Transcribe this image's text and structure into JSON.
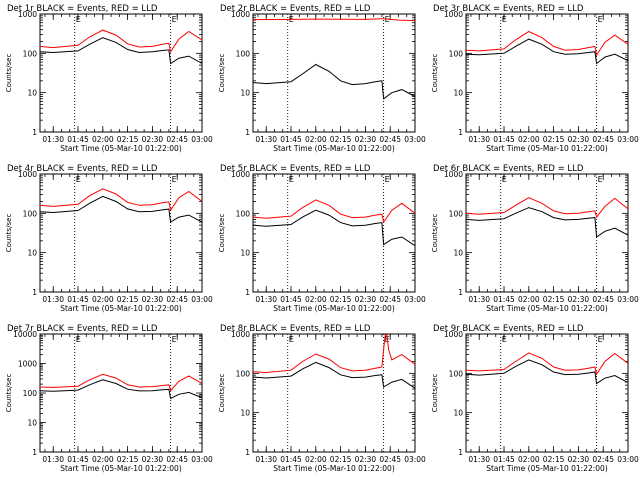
{
  "chart_data": [
    {
      "type": "line",
      "title": "Det 1r BLACK = Events, RED = LLD",
      "xlabel": "Start Time (05-Mar-10 01:22:00)",
      "ylabel": "Counts/sec",
      "x_ticks": [
        "01:30",
        "01:45",
        "02:00",
        "02:15",
        "02:30",
        "02:45",
        "03:00"
      ],
      "y_ticks": [
        "1",
        "10",
        "100",
        "1000"
      ],
      "xlim": [
        "01:22",
        "03:00"
      ],
      "ylim": [
        1,
        1000
      ],
      "y_scale": "log",
      "markers": [
        "01:43",
        "02:41"
      ],
      "marker_labels": [
        "E",
        "E"
      ],
      "series": [
        {
          "color": "#ff0000",
          "x": [
            "01:22",
            "01:30",
            "01:45",
            "01:52",
            "02:00",
            "02:08",
            "02:15",
            "02:22",
            "02:30",
            "02:36",
            "02:40",
            "02:41",
            "02:46",
            "02:52",
            "03:00"
          ],
          "y": [
            150,
            140,
            160,
            260,
            390,
            290,
            175,
            145,
            150,
            170,
            180,
            110,
            230,
            360,
            220
          ]
        },
        {
          "color": "#000000",
          "x": [
            "01:22",
            "01:30",
            "01:45",
            "01:52",
            "02:00",
            "02:08",
            "02:15",
            "02:22",
            "02:30",
            "02:36",
            "02:40",
            "02:41",
            "02:46",
            "02:52",
            "03:00"
          ],
          "y": [
            110,
            105,
            115,
            170,
            250,
            190,
            125,
            105,
            110,
            118,
            122,
            55,
            75,
            85,
            55
          ]
        }
      ]
    },
    {
      "type": "line",
      "title": "Det 2r BLACK = Events, RED = LLD",
      "xlabel": "Start Time (05-Mar-10 01:22:00)",
      "ylabel": "Counts/sec",
      "x_ticks": [
        "01:30",
        "01:45",
        "02:00",
        "02:15",
        "02:30",
        "02:45",
        "03:00"
      ],
      "y_ticks": [
        "1",
        "10",
        "100",
        "1000"
      ],
      "xlim": [
        "01:22",
        "03:00"
      ],
      "ylim": [
        1,
        1000
      ],
      "y_scale": "log",
      "markers": [
        "01:43",
        "02:41"
      ],
      "marker_labels": [
        "E",
        "E"
      ],
      "series": [
        {
          "color": "#ff0000",
          "x": [
            "01:22",
            "01:45",
            "02:00",
            "02:15",
            "02:30",
            "02:41",
            "02:50",
            "03:00"
          ],
          "y": [
            720,
            730,
            740,
            735,
            730,
            760,
            700,
            680
          ]
        },
        {
          "color": "#000000",
          "x": [
            "01:22",
            "01:30",
            "01:45",
            "01:52",
            "02:00",
            "02:08",
            "02:15",
            "02:22",
            "02:30",
            "02:36",
            "02:40",
            "02:41",
            "02:46",
            "02:52",
            "03:00"
          ],
          "y": [
            18,
            17,
            19,
            30,
            52,
            35,
            20,
            16,
            17,
            19,
            20,
            7,
            10,
            12,
            8
          ]
        }
      ]
    },
    {
      "type": "line",
      "title": "Det 3r BLACK = Events, RED = LLD",
      "xlabel": "Start Time (05-Mar-10 01:22:00)",
      "ylabel": "Counts/sec",
      "x_ticks": [
        "01:30",
        "01:45",
        "02:00",
        "02:15",
        "02:30",
        "02:45",
        "03:00"
      ],
      "y_ticks": [
        "1",
        "10",
        "100",
        "1000"
      ],
      "xlim": [
        "01:22",
        "03:00"
      ],
      "ylim": [
        1,
        1000
      ],
      "y_scale": "log",
      "markers": [
        "01:43",
        "02:41"
      ],
      "marker_labels": [
        "E",
        "E"
      ],
      "series": [
        {
          "color": "#ff0000",
          "x": [
            "01:22",
            "01:30",
            "01:45",
            "01:52",
            "02:00",
            "02:08",
            "02:15",
            "02:22",
            "02:30",
            "02:36",
            "02:40",
            "02:41",
            "02:46",
            "02:52",
            "03:00"
          ],
          "y": [
            120,
            115,
            130,
            220,
            360,
            250,
            150,
            120,
            125,
            140,
            150,
            90,
            190,
            290,
            170
          ]
        },
        {
          "color": "#000000",
          "x": [
            "01:22",
            "01:30",
            "01:45",
            "01:52",
            "02:00",
            "02:08",
            "02:15",
            "02:22",
            "02:30",
            "02:36",
            "02:40",
            "02:41",
            "02:46",
            "02:52",
            "03:00"
          ],
          "y": [
            95,
            92,
            100,
            150,
            230,
            170,
            110,
            95,
            98,
            105,
            110,
            55,
            80,
            95,
            65
          ]
        }
      ]
    },
    {
      "type": "line",
      "title": "Det 4r BLACK = Events, RED = LLD",
      "xlabel": "Start Time (05-Mar-10 01:22:00)",
      "ylabel": "Counts/sec",
      "x_ticks": [
        "01:30",
        "01:45",
        "02:00",
        "02:15",
        "02:30",
        "02:45",
        "03:00"
      ],
      "y_ticks": [
        "1",
        "10",
        "100",
        "1000"
      ],
      "xlim": [
        "01:22",
        "03:00"
      ],
      "ylim": [
        1,
        1000
      ],
      "y_scale": "log",
      "markers": [
        "01:43",
        "02:41"
      ],
      "marker_labels": [
        "E",
        "E"
      ],
      "series": [
        {
          "color": "#ff0000",
          "x": [
            "01:22",
            "01:30",
            "01:45",
            "01:52",
            "02:00",
            "02:08",
            "02:15",
            "02:22",
            "02:30",
            "02:36",
            "02:40",
            "02:41",
            "02:46",
            "02:52",
            "03:00"
          ],
          "y": [
            160,
            150,
            170,
            280,
            420,
            310,
            190,
            160,
            165,
            185,
            195,
            120,
            250,
            360,
            200
          ]
        },
        {
          "color": "#000000",
          "x": [
            "01:22",
            "01:30",
            "01:45",
            "01:52",
            "02:00",
            "02:08",
            "02:15",
            "02:22",
            "02:30",
            "02:36",
            "02:40",
            "02:41",
            "02:46",
            "02:52",
            "03:00"
          ],
          "y": [
            110,
            105,
            118,
            180,
            270,
            200,
            130,
            110,
            112,
            122,
            128,
            60,
            80,
            90,
            60
          ]
        }
      ]
    },
    {
      "type": "line",
      "title": "Det 5r BLACK = Events, RED = LLD",
      "xlabel": "Start Time (05-Mar-10 01:22:00)",
      "ylabel": "Counts/sec",
      "x_ticks": [
        "01:30",
        "01:45",
        "02:00",
        "02:15",
        "02:30",
        "02:45",
        "03:00"
      ],
      "y_ticks": [
        "1",
        "10",
        "100",
        "1000"
      ],
      "xlim": [
        "01:22",
        "03:00"
      ],
      "ylim": [
        1,
        1000
      ],
      "y_scale": "log",
      "markers": [
        "01:43",
        "02:41"
      ],
      "marker_labels": [
        "E",
        "E"
      ],
      "series": [
        {
          "color": "#ff0000",
          "x": [
            "01:22",
            "01:30",
            "01:45",
            "01:52",
            "02:00",
            "02:08",
            "02:15",
            "02:22",
            "02:30",
            "02:36",
            "02:40",
            "02:41",
            "02:46",
            "02:52",
            "03:00"
          ],
          "y": [
            80,
            75,
            85,
            140,
            220,
            160,
            95,
            78,
            80,
            90,
            95,
            60,
            120,
            180,
            100
          ]
        },
        {
          "color": "#000000",
          "x": [
            "01:22",
            "01:30",
            "01:45",
            "01:52",
            "02:00",
            "02:08",
            "02:15",
            "02:22",
            "02:30",
            "02:36",
            "02:40",
            "02:41",
            "02:46",
            "02:52",
            "03:00"
          ],
          "y": [
            50,
            47,
            52,
            80,
            120,
            90,
            58,
            48,
            50,
            55,
            58,
            16,
            22,
            25,
            15
          ]
        }
      ]
    },
    {
      "type": "line",
      "title": "Det 6r BLACK = Events, RED = LLD",
      "xlabel": "Start Time (05-Mar-10 01:22:00)",
      "ylabel": "Counts/sec",
      "x_ticks": [
        "01:30",
        "01:45",
        "02:00",
        "02:15",
        "02:30",
        "02:45",
        "03:00"
      ],
      "y_ticks": [
        "1",
        "10",
        "100",
        "1000"
      ],
      "xlim": [
        "01:22",
        "03:00"
      ],
      "ylim": [
        1,
        1000
      ],
      "y_scale": "log",
      "markers": [
        "01:43",
        "02:41"
      ],
      "marker_labels": [
        "E",
        "E"
      ],
      "series": [
        {
          "color": "#ff0000",
          "x": [
            "01:22",
            "01:30",
            "01:45",
            "01:52",
            "02:00",
            "02:08",
            "02:15",
            "02:22",
            "02:30",
            "02:36",
            "02:40",
            "02:41",
            "02:46",
            "02:52",
            "03:00"
          ],
          "y": [
            100,
            95,
            105,
            160,
            250,
            180,
            115,
            98,
            100,
            110,
            115,
            80,
            150,
            240,
            130
          ]
        },
        {
          "color": "#000000",
          "x": [
            "01:22",
            "01:30",
            "01:45",
            "01:52",
            "02:00",
            "02:08",
            "02:15",
            "02:22",
            "02:30",
            "02:36",
            "02:40",
            "02:41",
            "02:46",
            "02:52",
            "03:00"
          ],
          "y": [
            70,
            66,
            73,
            100,
            140,
            110,
            78,
            68,
            70,
            75,
            78,
            25,
            35,
            42,
            28
          ]
        }
      ]
    },
    {
      "type": "line",
      "title": "Det 7r BLACK = Events, RED = LLD",
      "xlabel": "Start Time (05-Mar-10 01:22:00)",
      "ylabel": "Counts/sec",
      "x_ticks": [
        "01:30",
        "01:45",
        "02:00",
        "02:15",
        "02:30",
        "02:45",
        "03:00"
      ],
      "y_ticks": [
        "1",
        "10",
        "100",
        "1000",
        "10000"
      ],
      "xlim": [
        "01:22",
        "03:00"
      ],
      "ylim": [
        1,
        10000
      ],
      "y_scale": "log",
      "markers": [
        "01:43",
        "02:41"
      ],
      "marker_labels": [
        "E",
        "E"
      ],
      "series": [
        {
          "color": "#ff0000",
          "x": [
            "01:22",
            "01:30",
            "01:45",
            "01:52",
            "02:00",
            "02:08",
            "02:15",
            "02:22",
            "02:30",
            "02:36",
            "02:40",
            "02:41",
            "02:46",
            "02:52",
            "03:00"
          ],
          "y": [
            160,
            155,
            170,
            280,
            430,
            320,
            190,
            160,
            165,
            180,
            190,
            120,
            250,
            380,
            210
          ]
        },
        {
          "color": "#000000",
          "x": [
            "01:22",
            "01:30",
            "01:45",
            "01:52",
            "02:00",
            "02:08",
            "02:15",
            "02:22",
            "02:30",
            "02:36",
            "02:40",
            "02:41",
            "02:46",
            "02:52",
            "03:00"
          ],
          "y": [
            120,
            115,
            125,
            190,
            280,
            210,
            135,
            118,
            120,
            128,
            132,
            65,
            90,
            105,
            70
          ]
        }
      ]
    },
    {
      "type": "line",
      "title": "Det 8r BLACK = Events, RED = LLD",
      "xlabel": "Start Time (05-Mar-10 01:22:00)",
      "ylabel": "Counts/sec",
      "x_ticks": [
        "01:30",
        "01:45",
        "02:00",
        "02:15",
        "02:30",
        "02:45",
        "03:00"
      ],
      "y_ticks": [
        "1",
        "10",
        "100",
        "1000"
      ],
      "xlim": [
        "01:22",
        "03:00"
      ],
      "ylim": [
        1,
        1000
      ],
      "y_scale": "log",
      "markers": [
        "01:43",
        "02:41"
      ],
      "marker_labels": [
        "E",
        "E"
      ],
      "series": [
        {
          "color": "#ff0000",
          "x": [
            "01:22",
            "01:30",
            "01:45",
            "01:52",
            "02:00",
            "02:08",
            "02:15",
            "02:22",
            "02:30",
            "02:36",
            "02:40",
            "02:41",
            "02:42",
            "02:43",
            "02:44",
            "02:46",
            "02:52",
            "03:00"
          ],
          "y": [
            110,
            105,
            120,
            200,
            310,
            230,
            140,
            115,
            120,
            135,
            145,
            400,
            950,
            950,
            400,
            220,
            300,
            170
          ]
        },
        {
          "color": "#000000",
          "x": [
            "01:22",
            "01:30",
            "01:45",
            "01:52",
            "02:00",
            "02:08",
            "02:15",
            "02:22",
            "02:30",
            "02:36",
            "02:40",
            "02:41",
            "02:46",
            "02:52",
            "03:00"
          ],
          "y": [
            80,
            76,
            85,
            130,
            190,
            140,
            92,
            78,
            80,
            88,
            92,
            45,
            60,
            70,
            42
          ]
        }
      ]
    },
    {
      "type": "line",
      "title": "Det 9r BLACK = Events, RED = LLD",
      "xlabel": "Start Time (05-Mar-10 01:22:00)",
      "ylabel": "Counts/sec",
      "x_ticks": [
        "01:30",
        "01:45",
        "02:00",
        "02:15",
        "02:30",
        "02:45",
        "03:00"
      ],
      "y_ticks": [
        "1",
        "10",
        "100",
        "1000"
      ],
      "xlim": [
        "01:22",
        "03:00"
      ],
      "ylim": [
        1,
        1000
      ],
      "y_scale": "log",
      "markers": [
        "01:43",
        "02:41"
      ],
      "marker_labels": [
        "E",
        "E"
      ],
      "series": [
        {
          "color": "#ff0000",
          "x": [
            "01:22",
            "01:30",
            "01:45",
            "01:52",
            "02:00",
            "02:08",
            "02:15",
            "02:22",
            "02:30",
            "02:36",
            "02:40",
            "02:41",
            "02:46",
            "02:52",
            "03:00"
          ],
          "y": [
            120,
            115,
            125,
            200,
            330,
            240,
            145,
            120,
            122,
            135,
            145,
            95,
            200,
            320,
            180
          ]
        },
        {
          "color": "#000000",
          "x": [
            "01:22",
            "01:30",
            "01:45",
            "01:52",
            "02:00",
            "02:08",
            "02:15",
            "02:22",
            "02:30",
            "02:36",
            "02:40",
            "02:41",
            "02:46",
            "02:52",
            "03:00"
          ],
          "y": [
            95,
            90,
            100,
            150,
            220,
            165,
            108,
            93,
            95,
            102,
            108,
            55,
            75,
            88,
            58
          ]
        }
      ]
    }
  ]
}
